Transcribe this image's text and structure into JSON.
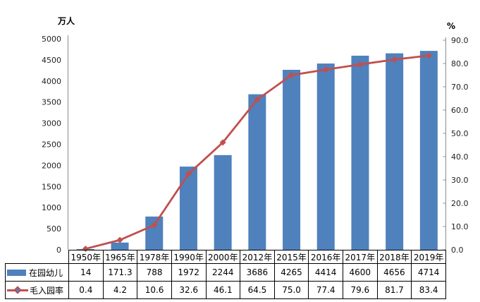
{
  "chart_data": {
    "type": "bar",
    "subtype": "combo-bar-line",
    "title": "",
    "categories": [
      "1950年",
      "1965年",
      "1978年",
      "1990年",
      "2000年",
      "2012年",
      "2015年",
      "2016年",
      "2017年",
      "2018年",
      "2019年"
    ],
    "series": [
      {
        "name": "在园幼儿",
        "type": "bar",
        "axis": "left",
        "color": "#4f81bd",
        "values": [
          14,
          171.3,
          788,
          1972,
          2244,
          3686,
          4265,
          4414,
          4600,
          4656,
          4714
        ],
        "value_labels": [
          "14",
          "171.3",
          "788",
          "1972",
          "2244",
          "3686",
          "4265",
          "4414",
          "4600",
          "4656",
          "4714"
        ]
      },
      {
        "name": "毛入园率",
        "type": "line",
        "axis": "right",
        "color": "#c0504d",
        "marker": "diamond",
        "marker_fill": "#4f81bd",
        "values": [
          0.4,
          4.2,
          10.6,
          32.6,
          46.1,
          64.5,
          75.0,
          77.4,
          79.6,
          81.7,
          83.4
        ],
        "value_labels": [
          "0.4",
          "4.2",
          "10.6",
          "32.6",
          "46.1",
          "64.5",
          "75.0",
          "77.4",
          "79.6",
          "81.7",
          "83.4"
        ]
      }
    ],
    "left_axis": {
      "title": "万人",
      "min": 0,
      "max": 5000,
      "step": 500,
      "tick_labels": [
        "0",
        "500",
        "1000",
        "1500",
        "2000",
        "2500",
        "3000",
        "3500",
        "4000",
        "4500",
        "5000"
      ]
    },
    "right_axis": {
      "title": "%",
      "min": 0,
      "max": 90,
      "step": 10,
      "tick_labels": [
        "0.0",
        "10.0",
        "20.0",
        "30.0",
        "40.0",
        "50.0",
        "60.0",
        "70.0",
        "80.0",
        "90.0"
      ]
    },
    "grid": false,
    "legend_position": "table-left"
  },
  "colors": {
    "bar": "#4f81bd",
    "line": "#c0504d",
    "axis_line": "#8c8c8c",
    "table_border": "#000000",
    "text": "#1f1f1f"
  }
}
